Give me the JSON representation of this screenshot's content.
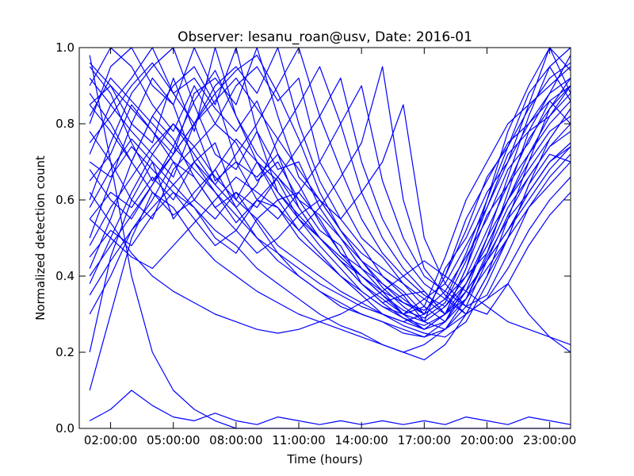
{
  "chart_data": {
    "type": "line",
    "title": "Observer: lesanu_roan@usv, Date: 2016-01",
    "xlabel": "Time (hours)",
    "ylabel": "Normalized detection count",
    "xlim": [
      0.5,
      24.0
    ],
    "ylim": [
      0.0,
      1.0
    ],
    "xtick_values": [
      2,
      5,
      8,
      11,
      14,
      17,
      20,
      23
    ],
    "xtick_labels": [
      "02:00:00",
      "05:00:00",
      "08:00:00",
      "11:00:00",
      "14:00:00",
      "17:00:00",
      "20:00:00",
      "23:00:00"
    ],
    "ytick_values": [
      0.0,
      0.2,
      0.4,
      0.6,
      0.8,
      1.0
    ],
    "ytick_labels": [
      "0.0",
      "0.2",
      "0.4",
      "0.6",
      "0.8",
      "1.0"
    ],
    "grid": false,
    "legend": "none",
    "color": "#0000ff",
    "x": [
      1,
      2,
      3,
      4,
      5,
      6,
      7,
      8,
      9,
      10,
      11,
      12,
      13,
      14,
      15,
      16,
      17,
      18,
      19,
      20,
      21,
      22,
      23,
      24
    ],
    "series": [
      {
        "values": [
          0.8,
          0.95,
          1.0,
          0.9,
          0.85,
          0.7,
          0.75,
          0.6,
          0.7,
          0.65,
          0.55,
          0.5,
          0.45,
          0.4,
          0.35,
          0.3,
          0.32,
          0.45,
          0.6,
          0.7,
          0.8,
          0.85,
          0.9,
          0.95
        ]
      },
      {
        "values": [
          0.72,
          0.85,
          0.92,
          1.0,
          0.88,
          0.8,
          0.65,
          0.7,
          0.6,
          0.58,
          0.5,
          0.45,
          0.4,
          0.35,
          0.3,
          0.28,
          0.3,
          0.4,
          0.55,
          0.65,
          0.75,
          0.8,
          0.88,
          0.92
        ]
      },
      {
        "values": [
          0.9,
          1.0,
          0.95,
          0.85,
          0.78,
          0.9,
          0.8,
          0.75,
          0.65,
          0.7,
          0.6,
          0.52,
          0.48,
          0.38,
          0.33,
          0.35,
          0.28,
          0.42,
          0.5,
          0.62,
          0.7,
          0.85,
          1.0,
          0.88
        ]
      },
      {
        "values": [
          0.6,
          0.75,
          0.88,
          0.95,
          1.0,
          0.85,
          0.72,
          0.68,
          0.78,
          0.62,
          0.55,
          0.48,
          0.42,
          0.36,
          0.32,
          0.3,
          0.34,
          0.38,
          0.48,
          0.58,
          0.72,
          0.78,
          0.82,
          0.9
        ]
      },
      {
        "values": [
          0.5,
          0.65,
          0.8,
          0.92,
          0.85,
          1.0,
          0.88,
          0.7,
          0.66,
          0.72,
          0.58,
          0.5,
          0.44,
          0.4,
          0.36,
          0.33,
          0.31,
          0.36,
          0.45,
          0.55,
          0.68,
          0.75,
          0.86,
          0.8
        ]
      },
      {
        "values": [
          0.85,
          0.9,
          0.8,
          0.75,
          0.92,
          0.78,
          1.0,
          0.82,
          0.7,
          0.6,
          0.62,
          0.55,
          0.46,
          0.42,
          0.38,
          0.34,
          0.3,
          0.4,
          0.52,
          0.66,
          0.74,
          0.88,
          0.95,
          1.0
        ]
      },
      {
        "values": [
          0.42,
          0.55,
          0.7,
          0.82,
          0.9,
          0.95,
          0.85,
          1.0,
          0.78,
          0.68,
          0.7,
          0.58,
          0.5,
          0.44,
          0.4,
          0.35,
          0.36,
          0.3,
          0.42,
          0.56,
          0.64,
          0.72,
          0.8,
          0.86
        ]
      },
      {
        "values": [
          0.95,
          0.88,
          0.75,
          0.65,
          0.72,
          0.88,
          0.92,
          0.85,
          1.0,
          0.82,
          0.66,
          0.6,
          0.52,
          0.46,
          0.42,
          0.38,
          0.32,
          0.28,
          0.38,
          0.5,
          0.6,
          0.7,
          0.78,
          0.82
        ]
      },
      {
        "values": [
          0.38,
          0.5,
          0.62,
          0.72,
          0.66,
          0.8,
          0.9,
          0.95,
          0.88,
          1.0,
          0.8,
          0.65,
          0.55,
          0.48,
          0.4,
          0.36,
          0.3,
          0.34,
          0.4,
          0.46,
          0.58,
          0.66,
          0.74,
          0.78
        ]
      },
      {
        "values": [
          0.78,
          0.7,
          0.6,
          0.55,
          0.68,
          0.74,
          0.8,
          0.9,
          0.95,
          0.86,
          0.92,
          0.7,
          0.6,
          0.5,
          0.45,
          0.38,
          0.34,
          0.3,
          0.36,
          0.44,
          0.52,
          0.62,
          0.7,
          0.75
        ]
      },
      {
        "values": [
          0.55,
          0.62,
          0.58,
          0.66,
          0.6,
          0.7,
          0.64,
          0.72,
          0.8,
          0.9,
          1.0,
          0.82,
          0.68,
          0.55,
          0.46,
          0.4,
          0.35,
          0.32,
          0.38,
          0.48,
          0.6,
          0.68,
          0.76,
          0.84
        ]
      },
      {
        "values": [
          0.2,
          0.45,
          0.6,
          0.7,
          0.55,
          0.62,
          0.68,
          0.58,
          0.64,
          0.76,
          0.85,
          0.95,
          0.8,
          0.62,
          0.5,
          0.42,
          0.36,
          0.3,
          0.34,
          0.45,
          0.55,
          0.62,
          0.7,
          0.74
        ]
      },
      {
        "values": [
          0.65,
          0.72,
          0.85,
          0.78,
          0.7,
          0.6,
          0.55,
          0.62,
          0.58,
          0.66,
          0.74,
          0.82,
          0.92,
          0.7,
          0.55,
          0.45,
          0.38,
          0.34,
          0.3,
          0.4,
          0.5,
          0.64,
          0.72,
          0.7
        ]
      },
      {
        "values": [
          0.88,
          0.8,
          0.7,
          0.82,
          0.76,
          0.66,
          0.58,
          0.52,
          0.6,
          0.55,
          0.62,
          0.7,
          0.8,
          0.9,
          0.65,
          0.5,
          0.4,
          0.36,
          0.32,
          0.35,
          0.46,
          0.58,
          0.66,
          0.72
        ]
      },
      {
        "values": [
          0.45,
          0.52,
          0.48,
          0.56,
          0.62,
          0.58,
          0.5,
          0.46,
          0.55,
          0.6,
          0.52,
          0.58,
          0.66,
          0.75,
          0.95,
          0.6,
          0.42,
          0.35,
          0.3,
          0.34,
          0.42,
          0.52,
          0.6,
          0.66
        ]
      },
      {
        "values": [
          0.7,
          0.66,
          0.74,
          0.68,
          0.62,
          0.55,
          0.48,
          0.52,
          0.46,
          0.5,
          0.56,
          0.6,
          0.55,
          0.62,
          0.7,
          0.85,
          0.5,
          0.38,
          0.32,
          0.3,
          0.38,
          0.48,
          0.56,
          0.62
        ]
      },
      {
        "values": [
          0.92,
          0.85,
          0.78,
          0.72,
          0.8,
          0.74,
          0.66,
          0.6,
          0.55,
          0.48,
          0.44,
          0.4,
          0.36,
          0.33,
          0.3,
          0.28,
          0.26,
          0.3,
          0.42,
          0.6,
          0.78,
          0.9,
          1.0,
          0.94
        ]
      },
      {
        "values": [
          0.3,
          0.4,
          0.52,
          0.6,
          0.7,
          0.66,
          0.58,
          0.62,
          0.54,
          0.46,
          0.4,
          0.36,
          0.32,
          0.3,
          0.28,
          0.25,
          0.24,
          0.28,
          0.36,
          0.5,
          0.66,
          0.82,
          0.95,
          0.86
        ]
      },
      {
        "values": [
          0.58,
          0.68,
          0.76,
          0.7,
          0.64,
          0.58,
          0.52,
          0.48,
          0.42,
          0.38,
          0.34,
          0.3,
          0.27,
          0.25,
          0.22,
          0.2,
          0.18,
          0.22,
          0.3,
          0.4,
          0.55,
          0.7,
          0.84,
          0.92
        ]
      },
      {
        "values": [
          0.82,
          0.92,
          0.86,
          0.8,
          0.74,
          0.68,
          0.62,
          0.56,
          0.5,
          0.44,
          0.4,
          0.36,
          0.33,
          0.3,
          0.28,
          0.26,
          0.24,
          0.26,
          0.34,
          0.46,
          0.62,
          0.78,
          0.88,
          0.98
        ]
      },
      {
        "values": [
          0.48,
          0.58,
          0.66,
          0.74,
          0.8,
          0.72,
          0.64,
          0.58,
          0.5,
          0.46,
          0.42,
          0.38,
          0.35,
          0.32,
          0.3,
          0.27,
          0.25,
          0.24,
          0.28,
          0.38,
          0.5,
          0.64,
          0.76,
          0.84
        ]
      },
      {
        "values": [
          0.1,
          0.3,
          0.5,
          0.62,
          0.58,
          0.5,
          0.44,
          0.4,
          0.36,
          0.33,
          0.3,
          0.28,
          0.26,
          0.24,
          0.22,
          0.2,
          0.22,
          0.26,
          0.3,
          0.34,
          0.38,
          0.3,
          0.24,
          0.2
        ]
      },
      {
        "values": [
          0.62,
          0.54,
          0.46,
          0.4,
          0.36,
          0.33,
          0.3,
          0.28,
          0.26,
          0.25,
          0.26,
          0.28,
          0.3,
          0.33,
          0.36,
          0.4,
          0.44,
          0.4,
          0.36,
          0.32,
          0.28,
          0.26,
          0.24,
          0.22
        ]
      },
      {
        "values": [
          0.02,
          0.05,
          0.1,
          0.06,
          0.03,
          0.02,
          0.04,
          0.02,
          0.01,
          0.03,
          0.02,
          0.01,
          0.02,
          0.01,
          0.02,
          0.01,
          0.02,
          0.01,
          0.03,
          0.02,
          0.01,
          0.03,
          0.02,
          0.01
        ]
      },
      {
        "values": [
          0.98,
          0.7,
          0.4,
          0.2,
          0.1,
          0.05,
          0.02,
          0.0,
          0.0,
          0.0,
          0.0,
          0.0,
          0.0,
          0.0,
          0.0,
          0.0,
          0.0,
          0.0,
          0.0,
          0.0,
          0.0,
          0.0,
          0.0,
          0.0
        ]
      },
      {
        "values": [
          0.75,
          0.82,
          0.9,
          0.96,
          0.88,
          0.92,
          0.84,
          0.78,
          0.86,
          0.72,
          0.64,
          0.54,
          0.46,
          0.4,
          0.35,
          0.31,
          0.29,
          0.33,
          0.44,
          0.58,
          0.7,
          0.8,
          0.86,
          0.9
        ]
      },
      {
        "values": [
          0.4,
          0.48,
          0.56,
          0.64,
          0.72,
          0.8,
          0.86,
          0.92,
          0.84,
          0.76,
          0.68,
          0.6,
          0.52,
          0.44,
          0.37,
          0.32,
          0.28,
          0.26,
          0.32,
          0.44,
          0.56,
          0.66,
          0.74,
          0.8
        ]
      },
      {
        "values": [
          0.68,
          0.6,
          0.55,
          0.64,
          0.74,
          0.86,
          0.94,
          0.82,
          0.72,
          0.66,
          0.6,
          0.56,
          0.5,
          0.42,
          0.36,
          0.3,
          0.26,
          0.3,
          0.38,
          0.48,
          0.6,
          0.72,
          0.82,
          0.88
        ]
      },
      {
        "values": [
          0.85,
          0.78,
          0.7,
          0.62,
          0.56,
          0.6,
          0.68,
          0.76,
          0.7,
          0.62,
          0.56,
          0.5,
          0.44,
          0.38,
          0.34,
          0.3,
          0.28,
          0.32,
          0.4,
          0.52,
          0.64,
          0.76,
          0.84,
          0.9
        ]
      },
      {
        "values": [
          0.55,
          0.5,
          0.45,
          0.42,
          0.48,
          0.54,
          0.6,
          0.66,
          0.62,
          0.58,
          0.52,
          0.46,
          0.4,
          0.36,
          0.32,
          0.29,
          0.27,
          0.3,
          0.36,
          0.44,
          0.52,
          0.6,
          0.68,
          0.74
        ]
      },
      {
        "values": [
          0.96,
          0.9,
          0.84,
          0.78,
          0.72,
          0.8,
          0.88,
          0.94,
          0.98,
          0.88,
          0.76,
          0.62,
          0.52,
          0.44,
          0.38,
          0.33,
          0.3,
          0.34,
          0.46,
          0.6,
          0.74,
          0.84,
          0.92,
          0.96
        ]
      },
      {
        "values": [
          0.35,
          0.44,
          0.52,
          0.58,
          0.64,
          0.7,
          0.62,
          0.54,
          0.6,
          0.66,
          0.58,
          0.5,
          0.44,
          0.38,
          0.33,
          0.29,
          0.26,
          0.28,
          0.34,
          0.42,
          0.5,
          0.58,
          0.64,
          0.7
        ]
      }
    ]
  }
}
